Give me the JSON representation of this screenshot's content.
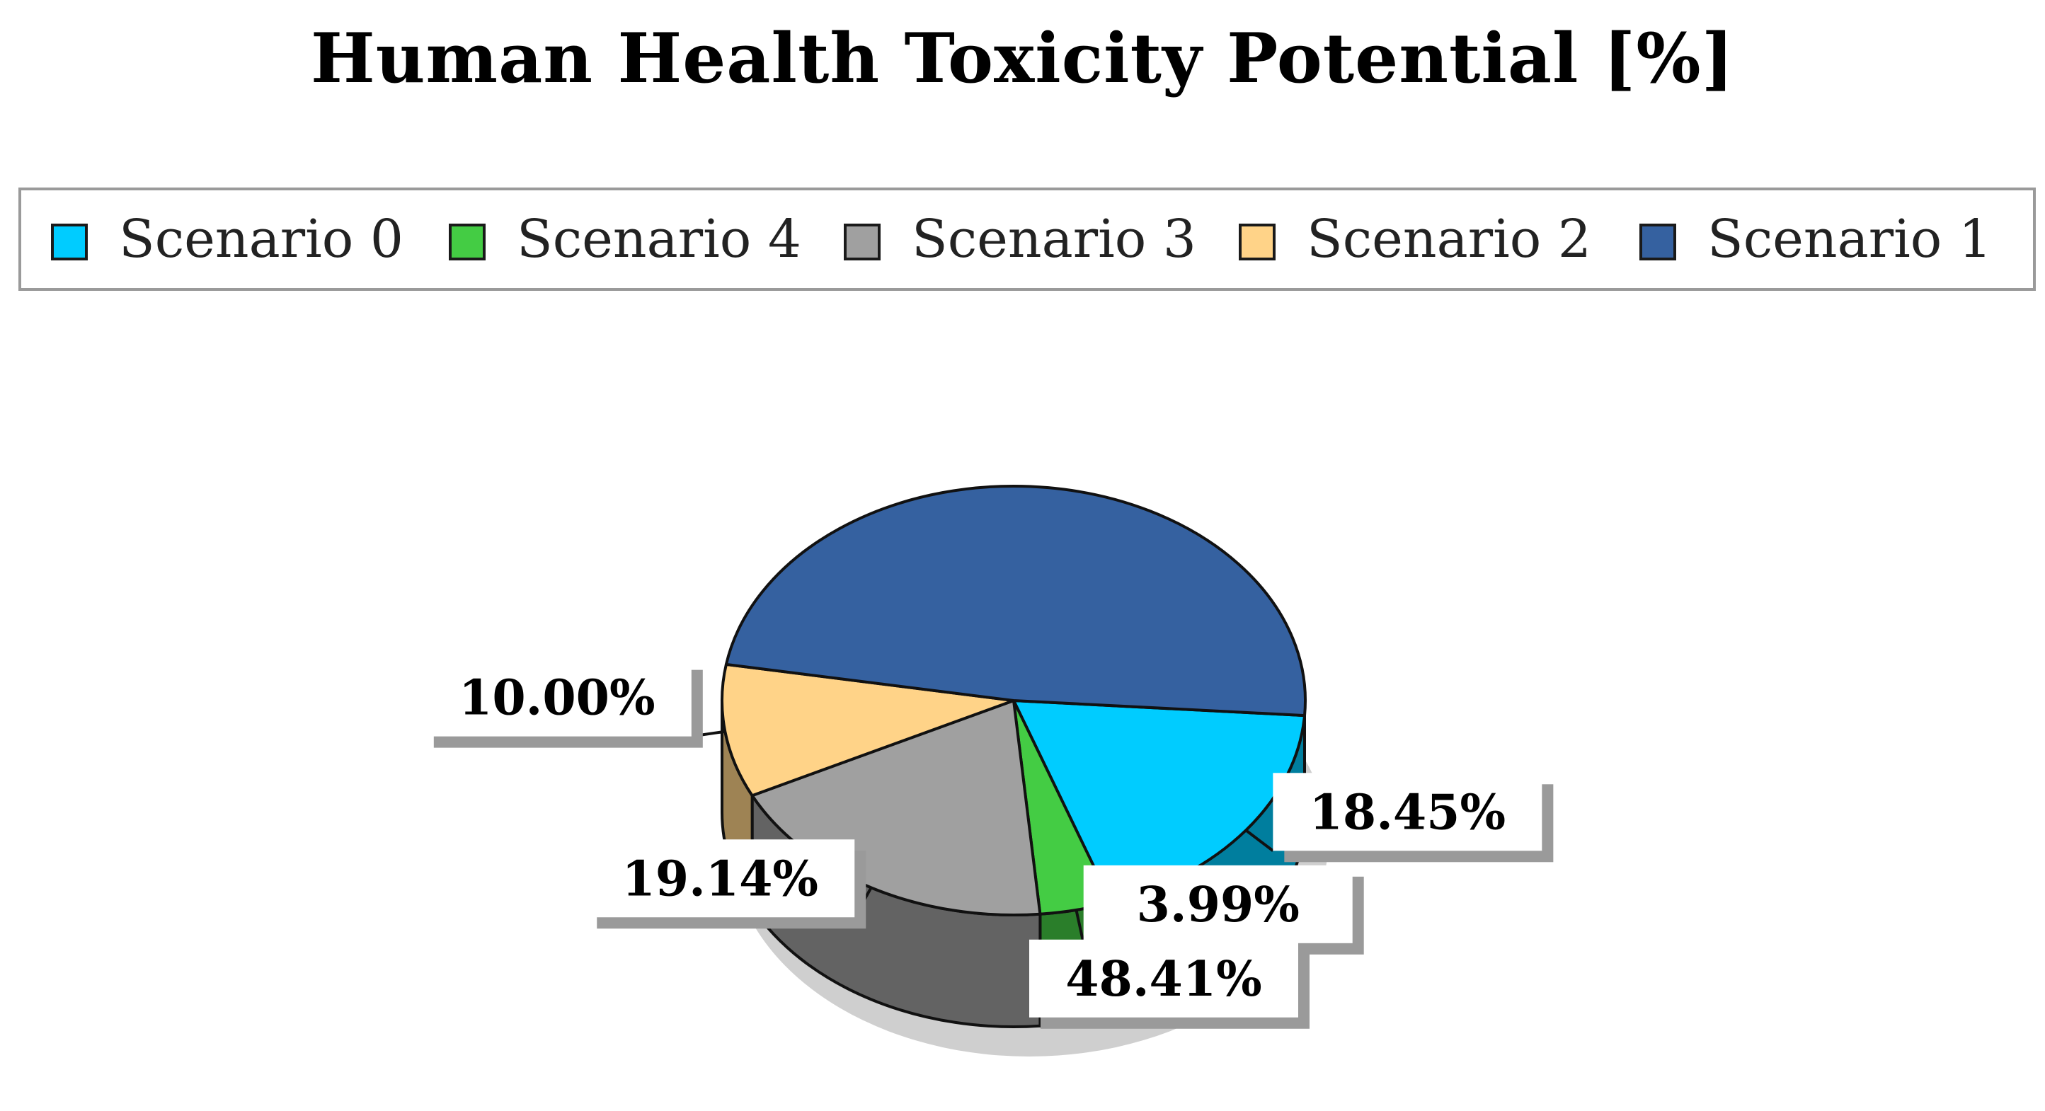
{
  "chart_data": {
    "type": "pie",
    "title": "Human Health Toxicity Potential [%]",
    "legend_position": "top",
    "three_d": true,
    "unit": "%",
    "series": [
      {
        "name": "Scenario 0",
        "value": 18.45,
        "label": "18.45%",
        "color": "#00ccff"
      },
      {
        "name": "Scenario 4",
        "value": 3.99,
        "label": "3.99%",
        "color": "#44cc44"
      },
      {
        "name": "Scenario 3",
        "value": 19.14,
        "label": "19.14%",
        "color": "#a0a0a0"
      },
      {
        "name": "Scenario 2",
        "value": 10.0,
        "label": "10.00%",
        "color": "#ffd388"
      },
      {
        "name": "Scenario 1",
        "value": 48.41,
        "label": "48.41%",
        "color": "#3561a0"
      }
    ]
  }
}
